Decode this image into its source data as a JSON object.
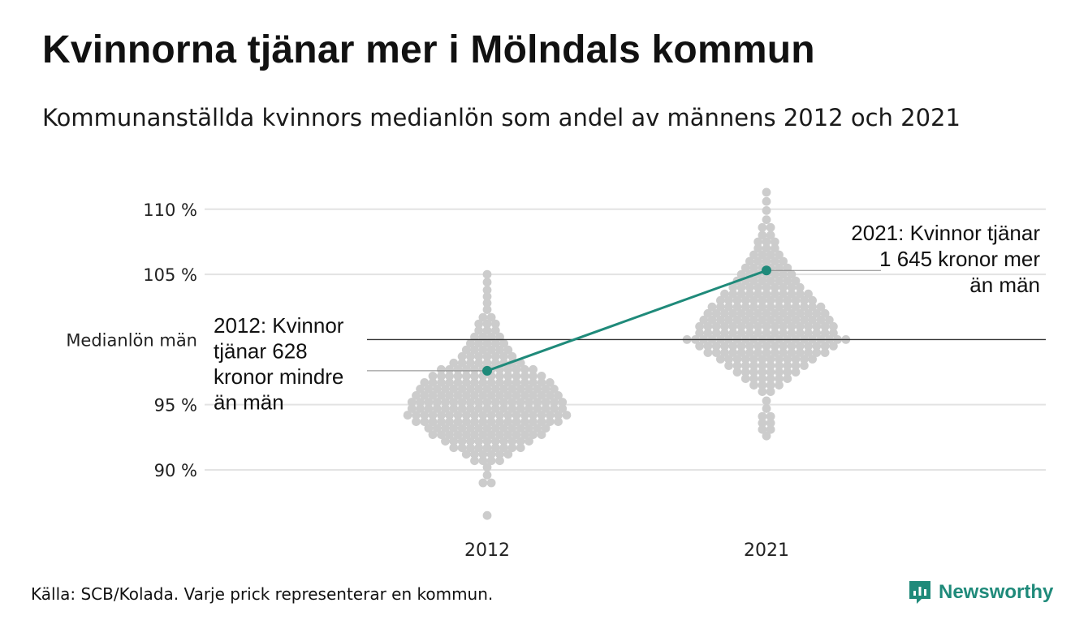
{
  "title": "Kvinnorna tjänar mer i Mölndals kommun",
  "subtitle": "Kommunanställda kvinnors medianlön som andel av männens 2012 och 2021",
  "source": "Källa: SCB/Kolada. Varje prick representerar en kommun.",
  "brand": {
    "name": "Newsworthy",
    "icon": "newsworthy-logo-icon",
    "color": "#1f8a7a"
  },
  "chart_data": {
    "type": "scatter",
    "title": "Kvinnorna tjänar mer i Mölndals kommun",
    "subtitle": "Kommunanställda kvinnors medianlön som andel av männens 2012 och 2021",
    "categories": [
      "2012",
      "2021"
    ],
    "ylim": [
      86.2,
      113.6
    ],
    "yticks": [
      90,
      95,
      105,
      110
    ],
    "ytick_labels": [
      "90 %",
      "95 %",
      "105 %",
      "110 %"
    ],
    "reference_line": {
      "value": 100,
      "label": "Medianlön män"
    },
    "grid": true,
    "colors": {
      "dots": "#cccccc",
      "highlight": "#1f8a7a",
      "grid": "#e3e3e3",
      "reference": "#333333"
    },
    "highlight": {
      "name": "Mölndal",
      "values": [
        97.6,
        105.3
      ],
      "annotations": [
        "2012: Kvinnor tjänar 628 kronor mindre än män",
        "2021: Kvinnor tjänar 1 645 kronor mer än män"
      ]
    },
    "distribution": [
      {
        "category": "2012",
        "bins": [
          {
            "y": 86.5,
            "n": 1
          },
          {
            "y": 89.0,
            "n": 2
          },
          {
            "y": 89.6,
            "n": 1
          },
          {
            "y": 90.2,
            "n": 1
          },
          {
            "y": 90.7,
            "n": 4
          },
          {
            "y": 91.2,
            "n": 6
          },
          {
            "y": 91.7,
            "n": 9
          },
          {
            "y": 92.2,
            "n": 11
          },
          {
            "y": 92.7,
            "n": 14
          },
          {
            "y": 93.2,
            "n": 15
          },
          {
            "y": 93.7,
            "n": 18
          },
          {
            "y": 94.2,
            "n": 20
          },
          {
            "y": 94.7,
            "n": 19
          },
          {
            "y": 95.2,
            "n": 19
          },
          {
            "y": 95.7,
            "n": 18
          },
          {
            "y": 96.2,
            "n": 17
          },
          {
            "y": 96.7,
            "n": 16
          },
          {
            "y": 97.2,
            "n": 14
          },
          {
            "y": 97.7,
            "n": 12
          },
          {
            "y": 98.2,
            "n": 9
          },
          {
            "y": 98.7,
            "n": 7
          },
          {
            "y": 99.2,
            "n": 6
          },
          {
            "y": 99.7,
            "n": 5
          },
          {
            "y": 100.2,
            "n": 4
          },
          {
            "y": 100.7,
            "n": 3
          },
          {
            "y": 101.2,
            "n": 3
          },
          {
            "y": 101.7,
            "n": 2
          },
          {
            "y": 102.3,
            "n": 1
          },
          {
            "y": 102.8,
            "n": 1
          },
          {
            "y": 103.3,
            "n": 1
          },
          {
            "y": 103.8,
            "n": 1
          },
          {
            "y": 104.4,
            "n": 1
          },
          {
            "y": 105.0,
            "n": 1
          }
        ]
      },
      {
        "category": "2021",
        "bins": [
          {
            "y": 92.6,
            "n": 1
          },
          {
            "y": 93.1,
            "n": 2
          },
          {
            "y": 93.6,
            "n": 2
          },
          {
            "y": 94.1,
            "n": 2
          },
          {
            "y": 94.7,
            "n": 1
          },
          {
            "y": 95.3,
            "n": 1
          },
          {
            "y": 96.0,
            "n": 2
          },
          {
            "y": 96.5,
            "n": 4
          },
          {
            "y": 97.0,
            "n": 6
          },
          {
            "y": 97.5,
            "n": 8
          },
          {
            "y": 98.0,
            "n": 10
          },
          {
            "y": 98.5,
            "n": 12
          },
          {
            "y": 99.0,
            "n": 15
          },
          {
            "y": 99.5,
            "n": 17
          },
          {
            "y": 100.0,
            "n": 20
          },
          {
            "y": 100.5,
            "n": 17
          },
          {
            "y": 101.0,
            "n": 17
          },
          {
            "y": 101.5,
            "n": 16
          },
          {
            "y": 102.0,
            "n": 15
          },
          {
            "y": 102.5,
            "n": 14
          },
          {
            "y": 103.0,
            "n": 12
          },
          {
            "y": 103.5,
            "n": 11
          },
          {
            "y": 104.0,
            "n": 9
          },
          {
            "y": 104.5,
            "n": 8
          },
          {
            "y": 105.0,
            "n": 7
          },
          {
            "y": 105.5,
            "n": 6
          },
          {
            "y": 106.0,
            "n": 5
          },
          {
            "y": 106.5,
            "n": 4
          },
          {
            "y": 107.0,
            "n": 3
          },
          {
            "y": 107.5,
            "n": 3
          },
          {
            "y": 108.0,
            "n": 2
          },
          {
            "y": 108.6,
            "n": 2
          },
          {
            "y": 109.2,
            "n": 1
          },
          {
            "y": 109.9,
            "n": 1
          },
          {
            "y": 110.6,
            "n": 1
          },
          {
            "y": 111.3,
            "n": 1
          }
        ]
      }
    ]
  }
}
